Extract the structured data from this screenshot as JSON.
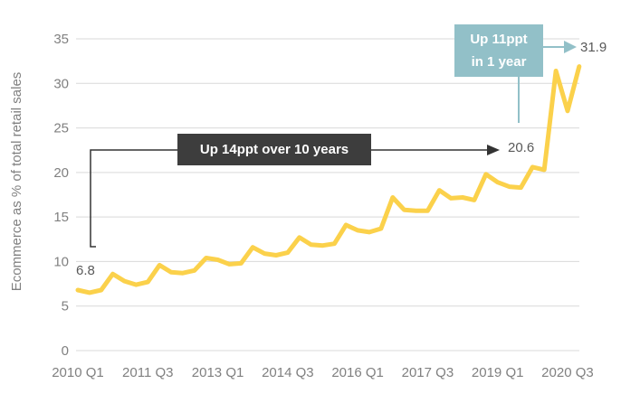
{
  "chart_data": {
    "type": "line",
    "title": "",
    "xlabel": "",
    "ylabel": "Ecommerce as % of total retail sales",
    "x": [
      "2010 Q1",
      "2010 Q2",
      "2010 Q3",
      "2010 Q4",
      "2011 Q1",
      "2011 Q2",
      "2011 Q3",
      "2011 Q4",
      "2012 Q1",
      "2012 Q2",
      "2012 Q3",
      "2012 Q4",
      "2013 Q1",
      "2013 Q2",
      "2013 Q3",
      "2013 Q4",
      "2014 Q1",
      "2014 Q2",
      "2014 Q3",
      "2014 Q4",
      "2015 Q1",
      "2015 Q2",
      "2015 Q3",
      "2015 Q4",
      "2016 Q1",
      "2016 Q2",
      "2016 Q3",
      "2016 Q4",
      "2017 Q1",
      "2017 Q2",
      "2017 Q3",
      "2017 Q4",
      "2018 Q1",
      "2018 Q2",
      "2018 Q3",
      "2018 Q4",
      "2019 Q1",
      "2019 Q2",
      "2019 Q3",
      "2019 Q4",
      "2020 Q1",
      "2020 Q2",
      "2020 Q3",
      "2020 Q4"
    ],
    "values": [
      6.8,
      6.5,
      6.8,
      8.6,
      7.8,
      7.4,
      7.7,
      9.6,
      8.8,
      8.7,
      9.0,
      10.4,
      10.2,
      9.7,
      9.8,
      11.6,
      10.9,
      10.7,
      11.0,
      12.7,
      11.9,
      11.8,
      12.0,
      14.1,
      13.5,
      13.3,
      13.7,
      17.2,
      15.8,
      15.7,
      15.7,
      18.0,
      17.1,
      17.2,
      16.9,
      19.8,
      18.9,
      18.4,
      18.3,
      20.6,
      20.3,
      31.4,
      26.9,
      31.9
    ],
    "ylim": [
      0,
      35
    ],
    "yticks": [
      0,
      5,
      10,
      15,
      20,
      25,
      30,
      35
    ],
    "xtick_indices": [
      0,
      6,
      12,
      18,
      24,
      30,
      36,
      42
    ],
    "xtick_labels": [
      "2010 Q1",
      "2011 Q3",
      "2013 Q1",
      "2014 Q3",
      "2016 Q1",
      "2017 Q3",
      "2019 Q1",
      "2020 Q3"
    ],
    "grid": "horizontal",
    "legend": "none",
    "annotations": {
      "start_label": "6.8",
      "mid_label": "20.6",
      "end_label": "31.9",
      "box1_text": "Up 14ppt over 10 years",
      "box2_line1": "Up 11ppt",
      "box2_line2": "in 1 year"
    },
    "colors": {
      "line": "#FBD14B",
      "grid": "#D9D9D9",
      "tick_text": "#808080",
      "value_text": "#595959",
      "dark_box": "#3D3D3D",
      "teal_box": "#92C0C8",
      "black_arrow": "#333333"
    }
  }
}
